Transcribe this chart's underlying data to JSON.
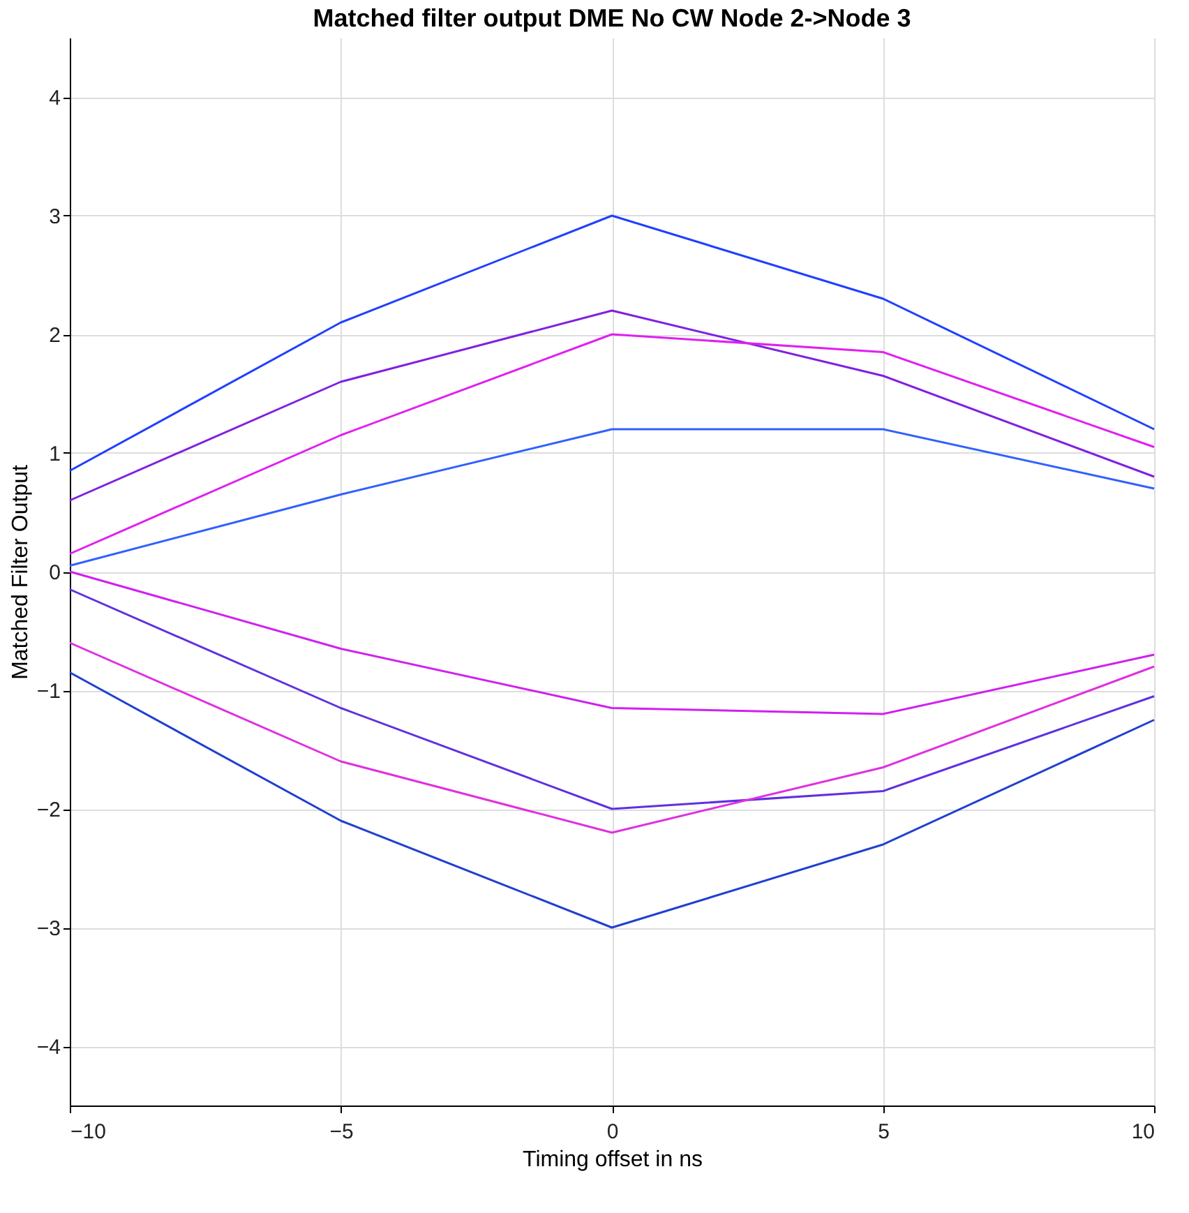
{
  "chart_data": {
    "type": "line",
    "title": "Matched filter output DME No CW  Node 2->Node 3",
    "xlabel": "Timing offset in ns",
    "ylabel": "Matched Filter Output",
    "x": [
      -10,
      -5,
      0,
      5,
      10
    ],
    "series": [
      {
        "color": "#2040ff",
        "values": [
          0.85,
          2.1,
          3.0,
          2.3,
          1.2
        ]
      },
      {
        "color": "#8020e0",
        "values": [
          0.6,
          1.6,
          2.2,
          1.65,
          0.8
        ]
      },
      {
        "color": "#e020f0",
        "values": [
          0.15,
          1.15,
          2.0,
          1.85,
          1.05
        ]
      },
      {
        "color": "#3060ff",
        "values": [
          0.05,
          0.65,
          1.2,
          1.2,
          0.7
        ]
      },
      {
        "color": "#d020f0",
        "values": [
          0.0,
          -0.65,
          -1.15,
          -1.2,
          -0.7
        ]
      },
      {
        "color": "#6030e0",
        "values": [
          -0.15,
          -1.15,
          -2.0,
          -1.85,
          -1.05
        ]
      },
      {
        "color": "#e030e0",
        "values": [
          -0.6,
          -1.6,
          -2.2,
          -1.65,
          -0.8
        ]
      },
      {
        "color": "#2040d0",
        "values": [
          -0.85,
          -2.1,
          -3.0,
          -2.3,
          -1.25
        ]
      }
    ],
    "xlim": [
      -10,
      10
    ],
    "xticks": [
      -10,
      -5,
      0,
      5,
      10
    ],
    "ylim": [
      -4.5,
      4.5
    ],
    "yticks": [
      -4,
      -3,
      -2,
      -1,
      0,
      1,
      2,
      3,
      4
    ],
    "grid": true,
    "legend": false,
    "marker": "none",
    "line_style": "solid"
  }
}
